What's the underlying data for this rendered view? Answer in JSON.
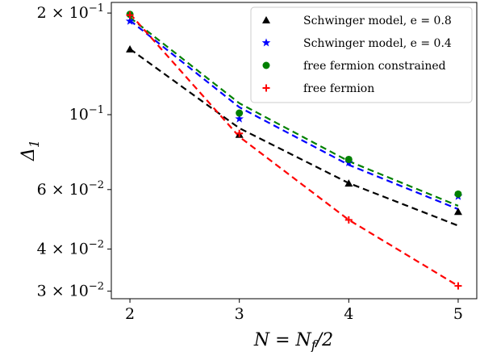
{
  "chart_data": {
    "type": "scatter",
    "title": "",
    "xlabel": "N = N_f/2",
    "ylabel": "Δ_1",
    "xlim": [
      1.83,
      5.17
    ],
    "ylim": [
      0.0285,
      0.215
    ],
    "yscale": "log",
    "grid": false,
    "legend_position": "top-right",
    "x_ticks": [
      2,
      3,
      4,
      5
    ],
    "x_tick_labels": [
      "2",
      "3",
      "4",
      "5"
    ],
    "y_ticks": [
      0.2,
      0.1,
      0.06,
      0.04,
      0.03
    ],
    "y_tick_labels": [
      {
        "base": "2 × 10",
        "exp": "−1"
      },
      {
        "base": "10",
        "exp": "−1"
      },
      {
        "base": "6 × 10",
        "exp": "−2"
      },
      {
        "base": "4 × 10",
        "exp": "−2"
      },
      {
        "base": "3 × 10",
        "exp": "−2"
      }
    ],
    "series": [
      {
        "name": "Schwinger model, e = 0.8",
        "marker": "triangle",
        "color": "#000000",
        "x": [
          2,
          3,
          4,
          5
        ],
        "values": [
          0.1562,
          0.0873,
          0.0626,
          0.0516
        ],
        "fit": [
          0.1565,
          0.0912,
          0.0627,
          0.0469
        ]
      },
      {
        "name": "Schwinger model, e = 0.4",
        "marker": "star",
        "color": "#0000ff",
        "x": [
          2,
          3,
          4,
          5
        ],
        "values": [
          0.1892,
          0.0972,
          0.0721,
          0.0573
        ],
        "fit": [
          0.1902,
          0.1052,
          0.071,
          0.0525
        ]
      },
      {
        "name": "free fermion constrained",
        "marker": "circle",
        "color": "#008000",
        "x": [
          2,
          3,
          4,
          5
        ],
        "values": [
          0.1982,
          0.1011,
          0.0737,
          0.0582
        ],
        "fit": [
          0.194,
          0.1081,
          0.0728,
          0.0537
        ]
      },
      {
        "name": "free fermion",
        "marker": "plus",
        "color": "#ff0000",
        "x": [
          2,
          3,
          4,
          5
        ],
        "values": [
          0.1972,
          0.088,
          0.0488,
          0.0311
        ],
        "fit": [
          0.199,
          0.086,
          0.0488,
          0.0311
        ]
      }
    ]
  }
}
